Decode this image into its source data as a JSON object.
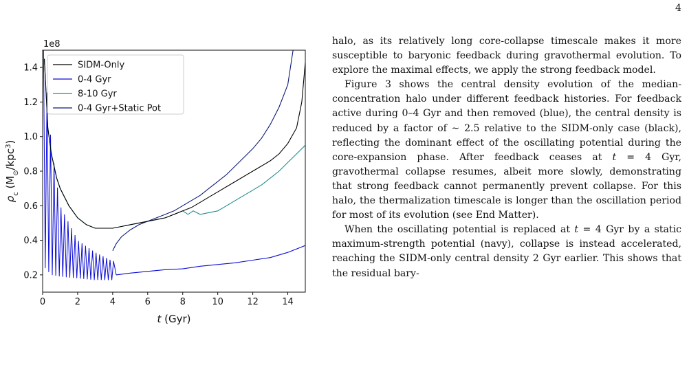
{
  "page_number": "4",
  "paragraphs": [
    {
      "indent": false,
      "text": "halo, as its relatively long core-collapse timescale makes it more susceptible to baryonic feedback during gravothermal evolution. To explore the maximal effects, we apply the strong feedback model."
    },
    {
      "indent": true,
      "text": "Figure 3 shows the central density evolution of the median-concentration halo under different feedback histories. For feedback active during 0–4 Gyr and then removed (blue), the central density is reduced by a factor of ∼ 2.5 relative to the SIDM-only case (black), reflecting the dominant effect of the oscillating potential during the core-expansion phase. After feedback ceases at t = 4 Gyr, gravothermal collapse resumes, albeit more slowly, demonstrating that strong feedback cannot permanently prevent collapse. For this halo, the thermalization timescale is longer than the oscillation period for most of its evolution (see End Matter)."
    },
    {
      "indent": true,
      "text": "When the oscillating potential is replaced at t = 4 Gyr by a static maximum-strength potential (navy), collapse is instead accelerated, reaching the SIDM-only central density 2 Gyr earlier. This shows that the residual bary-"
    }
  ],
  "chart_data": {
    "type": "line",
    "title": "",
    "xlabel": "t (Gyr)",
    "ylabel": "ρc (M⊙/kpc³)",
    "y_offset_label": "1e8",
    "xlim": [
      0,
      15
    ],
    "ylim": [
      0.1,
      1.5
    ],
    "x_ticks": [
      0,
      2,
      4,
      6,
      8,
      10,
      12,
      14
    ],
    "y_ticks": [
      0.2,
      0.4,
      0.6,
      0.8,
      1.0,
      1.2,
      1.4
    ],
    "y_tick_labels": [
      "0.2",
      "0.4",
      "0.6",
      "0.8",
      "1.0",
      "1.2",
      "1.4"
    ],
    "grid": false,
    "legend_position": "top-left",
    "series": [
      {
        "name": "SIDM-Only",
        "color": "#000000",
        "x": [
          0.1,
          0.3,
          0.5,
          0.8,
          1.0,
          1.5,
          2.0,
          2.5,
          3.0,
          3.5,
          4.0,
          4.5,
          5.0,
          5.5,
          6.0,
          6.5,
          7.0,
          7.5,
          8.0,
          8.5,
          9.0,
          9.5,
          10.0,
          10.5,
          11.0,
          11.5,
          12.0,
          12.5,
          13.0,
          13.5,
          14.0,
          14.5,
          14.8,
          15.0
        ],
        "y": [
          1.45,
          1.05,
          0.9,
          0.76,
          0.7,
          0.6,
          0.53,
          0.49,
          0.47,
          0.47,
          0.47,
          0.48,
          0.49,
          0.5,
          0.51,
          0.52,
          0.53,
          0.55,
          0.57,
          0.59,
          0.62,
          0.65,
          0.68,
          0.71,
          0.74,
          0.77,
          0.8,
          0.83,
          0.86,
          0.9,
          0.96,
          1.05,
          1.2,
          1.43
        ]
      },
      {
        "name": "0-4 Gyr",
        "color": "#0b0bd6",
        "x": [
          4.2,
          5.0,
          6.0,
          7.0,
          8.0,
          9.0,
          10.0,
          11.0,
          12.0,
          13.0,
          14.0,
          15.0
        ],
        "y": [
          0.2,
          0.21,
          0.22,
          0.23,
          0.235,
          0.25,
          0.26,
          0.27,
          0.285,
          0.3,
          0.33,
          0.37
        ]
      },
      {
        "name": "8-10 Gyr",
        "color": "#1f8c8c",
        "x": [
          0.1,
          0.3,
          0.5,
          0.8,
          1.0,
          1.5,
          2.0,
          2.5,
          3.0,
          3.5,
          4.0,
          4.5,
          5.0,
          5.5,
          6.0,
          6.5,
          7.0,
          7.5,
          8.0,
          8.3,
          8.6,
          9.0,
          9.5,
          10.0,
          10.5,
          11.0,
          11.5,
          12.0,
          12.5,
          13.0,
          13.5,
          14.0,
          14.5,
          15.0
        ],
        "y": [
          1.45,
          1.05,
          0.9,
          0.76,
          0.7,
          0.6,
          0.53,
          0.49,
          0.47,
          0.47,
          0.47,
          0.48,
          0.49,
          0.5,
          0.51,
          0.52,
          0.53,
          0.55,
          0.57,
          0.55,
          0.57,
          0.55,
          0.56,
          0.57,
          0.6,
          0.63,
          0.66,
          0.69,
          0.72,
          0.76,
          0.8,
          0.85,
          0.9,
          0.95
        ]
      },
      {
        "name": "0-4 Gyr+Static Pot",
        "color": "#0a1a7a",
        "x": [
          4.0,
          4.2,
          4.5,
          5.0,
          5.5,
          6.0,
          6.5,
          7.0,
          7.5,
          8.0,
          8.5,
          9.0,
          9.5,
          10.0,
          10.5,
          11.0,
          11.5,
          12.0,
          12.5,
          13.0,
          13.5,
          14.0,
          14.3
        ],
        "y": [
          0.34,
          0.38,
          0.42,
          0.46,
          0.49,
          0.51,
          0.53,
          0.55,
          0.57,
          0.6,
          0.63,
          0.66,
          0.7,
          0.74,
          0.78,
          0.83,
          0.88,
          0.93,
          0.99,
          1.07,
          1.17,
          1.3,
          1.5
        ]
      }
    ],
    "oscillation": {
      "series_index": 1,
      "x_start": 0.05,
      "x_end": 4.1,
      "period": 0.2,
      "upper": {
        "x": [
          0.05,
          0.5,
          1.0,
          2.0,
          3.0,
          4.0
        ],
        "y": [
          1.5,
          0.95,
          0.6,
          0.4,
          0.33,
          0.28
        ]
      },
      "lower": {
        "x": [
          0.05,
          0.5,
          1.0,
          2.0,
          3.0,
          4.0
        ],
        "y": [
          0.25,
          0.2,
          0.19,
          0.18,
          0.17,
          0.17
        ]
      }
    }
  }
}
